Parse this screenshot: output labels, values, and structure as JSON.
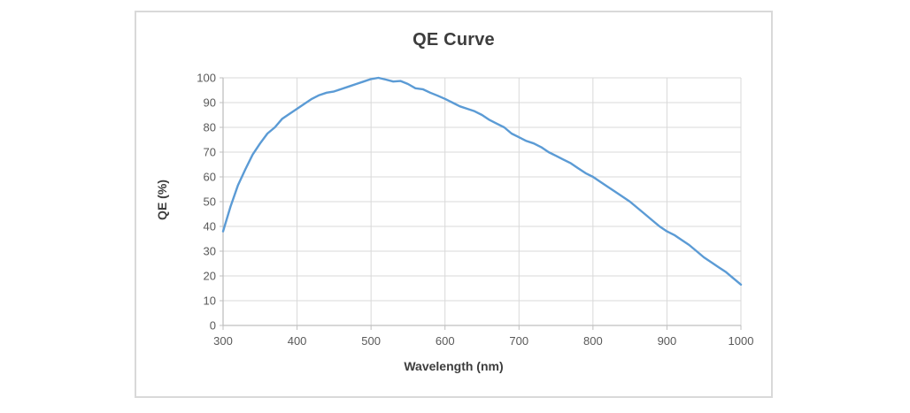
{
  "chart_data": {
    "type": "line",
    "title": "QE Curve",
    "xlabel": "Wavelength (nm)",
    "ylabel": "QE (%)",
    "xlim": [
      300,
      1000
    ],
    "ylim": [
      0,
      100
    ],
    "xticks": [
      300,
      400,
      500,
      600,
      700,
      800,
      900,
      1000
    ],
    "yticks": [
      0,
      10,
      20,
      30,
      40,
      50,
      60,
      70,
      80,
      90,
      100
    ],
    "grid": true,
    "legend": false,
    "series": [
      {
        "color": "#5B9BD5",
        "x": [
          300,
          310,
          320,
          330,
          340,
          350,
          360,
          370,
          380,
          390,
          400,
          410,
          420,
          430,
          440,
          450,
          460,
          470,
          480,
          490,
          500,
          510,
          520,
          530,
          540,
          550,
          560,
          570,
          580,
          590,
          600,
          610,
          620,
          630,
          640,
          650,
          660,
          670,
          680,
          690,
          700,
          710,
          720,
          730,
          740,
          750,
          760,
          770,
          780,
          790,
          800,
          810,
          820,
          830,
          840,
          850,
          860,
          870,
          880,
          890,
          900,
          910,
          920,
          930,
          940,
          950,
          960,
          970,
          980,
          990,
          1000
        ],
        "y": [
          38,
          48,
          56.5,
          63,
          69,
          73.5,
          77.5,
          80,
          83.5,
          85.5,
          87.5,
          89.5,
          91.5,
          93,
          94,
          94.5,
          95.5,
          96.5,
          97.5,
          98.5,
          99.5,
          100,
          99.3,
          98.5,
          98.7,
          97.5,
          95.8,
          95.4,
          94,
          92.8,
          91.5,
          90,
          88.5,
          87.5,
          86.5,
          85,
          83,
          81.5,
          80,
          77.5,
          76,
          74.5,
          73.5,
          72,
          70,
          68.5,
          67,
          65.5,
          63.5,
          61.5,
          60,
          58,
          56,
          54,
          52,
          50,
          47.5,
          45,
          42.5,
          40,
          38,
          36.5,
          34.5,
          32.5,
          30,
          27.5,
          25.5,
          23.5,
          21.5,
          19,
          16.5
        ]
      }
    ]
  },
  "styles": {
    "line_color": "#5B9BD5",
    "grid_color": "#D9D9D9",
    "axis_color": "#BFBFBF",
    "tick_label_color": "#595959",
    "title_color": "#3D3D3D",
    "card_border_color": "#D9D9D9",
    "background": "#FFFFFF"
  }
}
